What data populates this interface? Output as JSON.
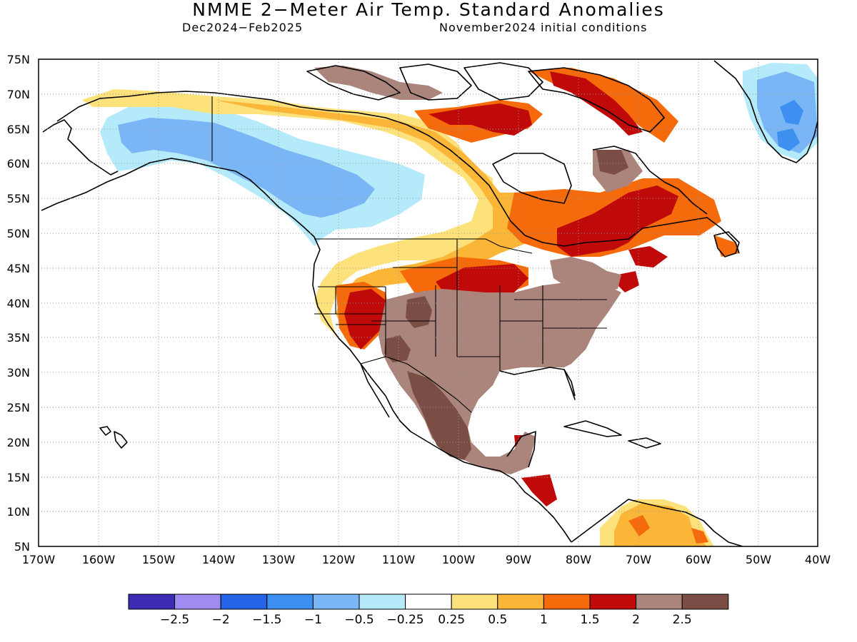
{
  "title": "NMME 2−Meter Air Temp. Standard Anomalies",
  "subtitle_left": "Dec2024−Feb2025",
  "subtitle_right": "November2024 initial conditions",
  "map": {
    "lon_range": [
      -170,
      -40
    ],
    "lat_range": [
      5,
      75
    ],
    "lat_ticks": [
      "5N",
      "10N",
      "15N",
      "20N",
      "25N",
      "30N",
      "35N",
      "40N",
      "45N",
      "50N",
      "55N",
      "60N",
      "65N",
      "70N",
      "75N"
    ],
    "lon_ticks": [
      "170W",
      "160W",
      "150W",
      "140W",
      "130W",
      "120W",
      "110W",
      "100W",
      "90W",
      "80W",
      "70W",
      "60W",
      "50W",
      "40W"
    ],
    "grid": "dotted"
  },
  "legend": {
    "colors": [
      "#3c2cb4",
      "#a08cf0",
      "#2564e6",
      "#3d8ff0",
      "#7ab6f5",
      "#b4eaf9",
      "#ffffff",
      "#fde17a",
      "#fbb637",
      "#f56a0a",
      "#c00a0a",
      "#ab857c",
      "#7a4e45"
    ],
    "labels": [
      "−2.5",
      "−2",
      "−1.5",
      "−1",
      "−0.5",
      "−0.25",
      "0.25",
      "0.5",
      "1",
      "1.5",
      "2",
      "2.5"
    ]
  }
}
